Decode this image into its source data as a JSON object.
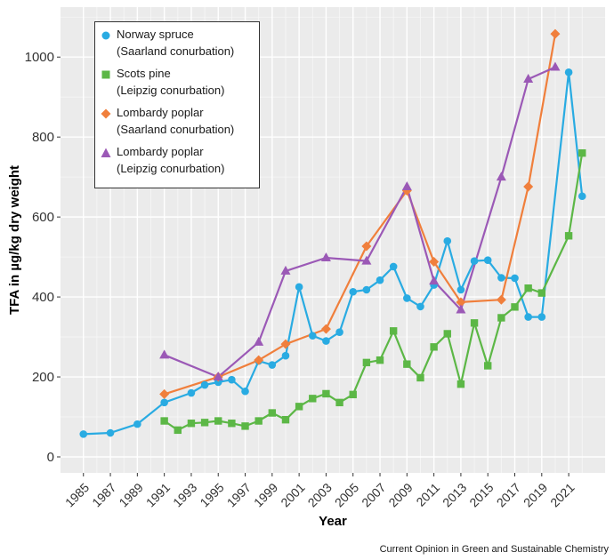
{
  "chart_data": {
    "type": "line",
    "title": "",
    "xlabel": "Year",
    "ylabel": "TFA in µg/kg dry weight",
    "xlim": [
      1983.3,
      2023.7
    ],
    "ylim": [
      -40,
      1125
    ],
    "yticks": [
      0,
      200,
      400,
      600,
      800,
      1000
    ],
    "xticks": [
      1985,
      1987,
      1989,
      1991,
      1993,
      1995,
      1997,
      1999,
      2001,
      2003,
      2005,
      2007,
      2009,
      2011,
      2013,
      2015,
      2017,
      2019,
      2021
    ],
    "grid": true,
    "legend_position": "top-left",
    "series": [
      {
        "name": "Norway spruce",
        "subname": "(Saarland conurbation)",
        "color": "#29abe2",
        "marker": "circle",
        "points": [
          [
            1985,
            57
          ],
          [
            1987,
            60
          ],
          [
            1989,
            82
          ],
          [
            1991,
            136
          ],
          [
            1993,
            160
          ],
          [
            1994,
            180
          ],
          [
            1995,
            187
          ],
          [
            1996,
            193
          ],
          [
            1997,
            164
          ],
          [
            1998,
            240
          ],
          [
            1999,
            230
          ],
          [
            2000,
            253
          ],
          [
            2001,
            425
          ],
          [
            2002,
            303
          ],
          [
            2003,
            290
          ],
          [
            2004,
            312
          ],
          [
            2005,
            413
          ],
          [
            2006,
            418
          ],
          [
            2007,
            442
          ],
          [
            2008,
            476
          ],
          [
            2009,
            397
          ],
          [
            2010,
            376
          ],
          [
            2011,
            430
          ],
          [
            2012,
            540
          ],
          [
            2013,
            418
          ],
          [
            2014,
            490
          ],
          [
            2015,
            492
          ],
          [
            2016,
            448
          ],
          [
            2017,
            447
          ],
          [
            2018,
            350
          ],
          [
            2019,
            350
          ],
          [
            2021,
            962
          ],
          [
            2022,
            652
          ]
        ]
      },
      {
        "name": "Scots pine",
        "subname": "(Leipzig conurbation)",
        "color": "#5cb746",
        "marker": "square",
        "points": [
          [
            1991,
            90
          ],
          [
            1992,
            67
          ],
          [
            1993,
            84
          ],
          [
            1994,
            86
          ],
          [
            1995,
            90
          ],
          [
            1996,
            84
          ],
          [
            1997,
            77
          ],
          [
            1998,
            90
          ],
          [
            1999,
            110
          ],
          [
            2000,
            93
          ],
          [
            2001,
            126
          ],
          [
            2002,
            146
          ],
          [
            2003,
            158
          ],
          [
            2004,
            136
          ],
          [
            2005,
            156
          ],
          [
            2006,
            236
          ],
          [
            2007,
            242
          ],
          [
            2008,
            315
          ],
          [
            2009,
            232
          ],
          [
            2010,
            198
          ],
          [
            2011,
            275
          ],
          [
            2012,
            308
          ],
          [
            2013,
            182
          ],
          [
            2014,
            335
          ],
          [
            2015,
            228
          ],
          [
            2016,
            348
          ],
          [
            2017,
            375
          ],
          [
            2018,
            422
          ],
          [
            2019,
            410
          ],
          [
            2021,
            553
          ],
          [
            2022,
            760
          ]
        ]
      },
      {
        "name": "Lombardy poplar",
        "subname": "(Saarland conurbation)",
        "color": "#f07f3c",
        "marker": "diamond",
        "points": [
          [
            1991,
            157
          ],
          [
            1995,
            200
          ],
          [
            1998,
            242
          ],
          [
            2000,
            282
          ],
          [
            2003,
            320
          ],
          [
            2006,
            527
          ],
          [
            2009,
            666
          ],
          [
            2011,
            488
          ],
          [
            2013,
            387
          ],
          [
            2016,
            393
          ],
          [
            2018,
            676
          ],
          [
            2020,
            1058
          ]
        ]
      },
      {
        "name": "Lombardy poplar",
        "subname": "(Leipzig conurbation)",
        "color": "#9b59b6",
        "marker": "triangle",
        "points": [
          [
            1991,
            255
          ],
          [
            1995,
            200
          ],
          [
            1998,
            287
          ],
          [
            2000,
            465
          ],
          [
            2003,
            498
          ],
          [
            2006,
            490
          ],
          [
            2009,
            676
          ],
          [
            2011,
            440
          ],
          [
            2013,
            368
          ],
          [
            2016,
            700
          ],
          [
            2018,
            945
          ],
          [
            2020,
            975
          ]
        ]
      }
    ]
  },
  "source_credit": "Current Opinion in Green and Sustainable Chemistry"
}
